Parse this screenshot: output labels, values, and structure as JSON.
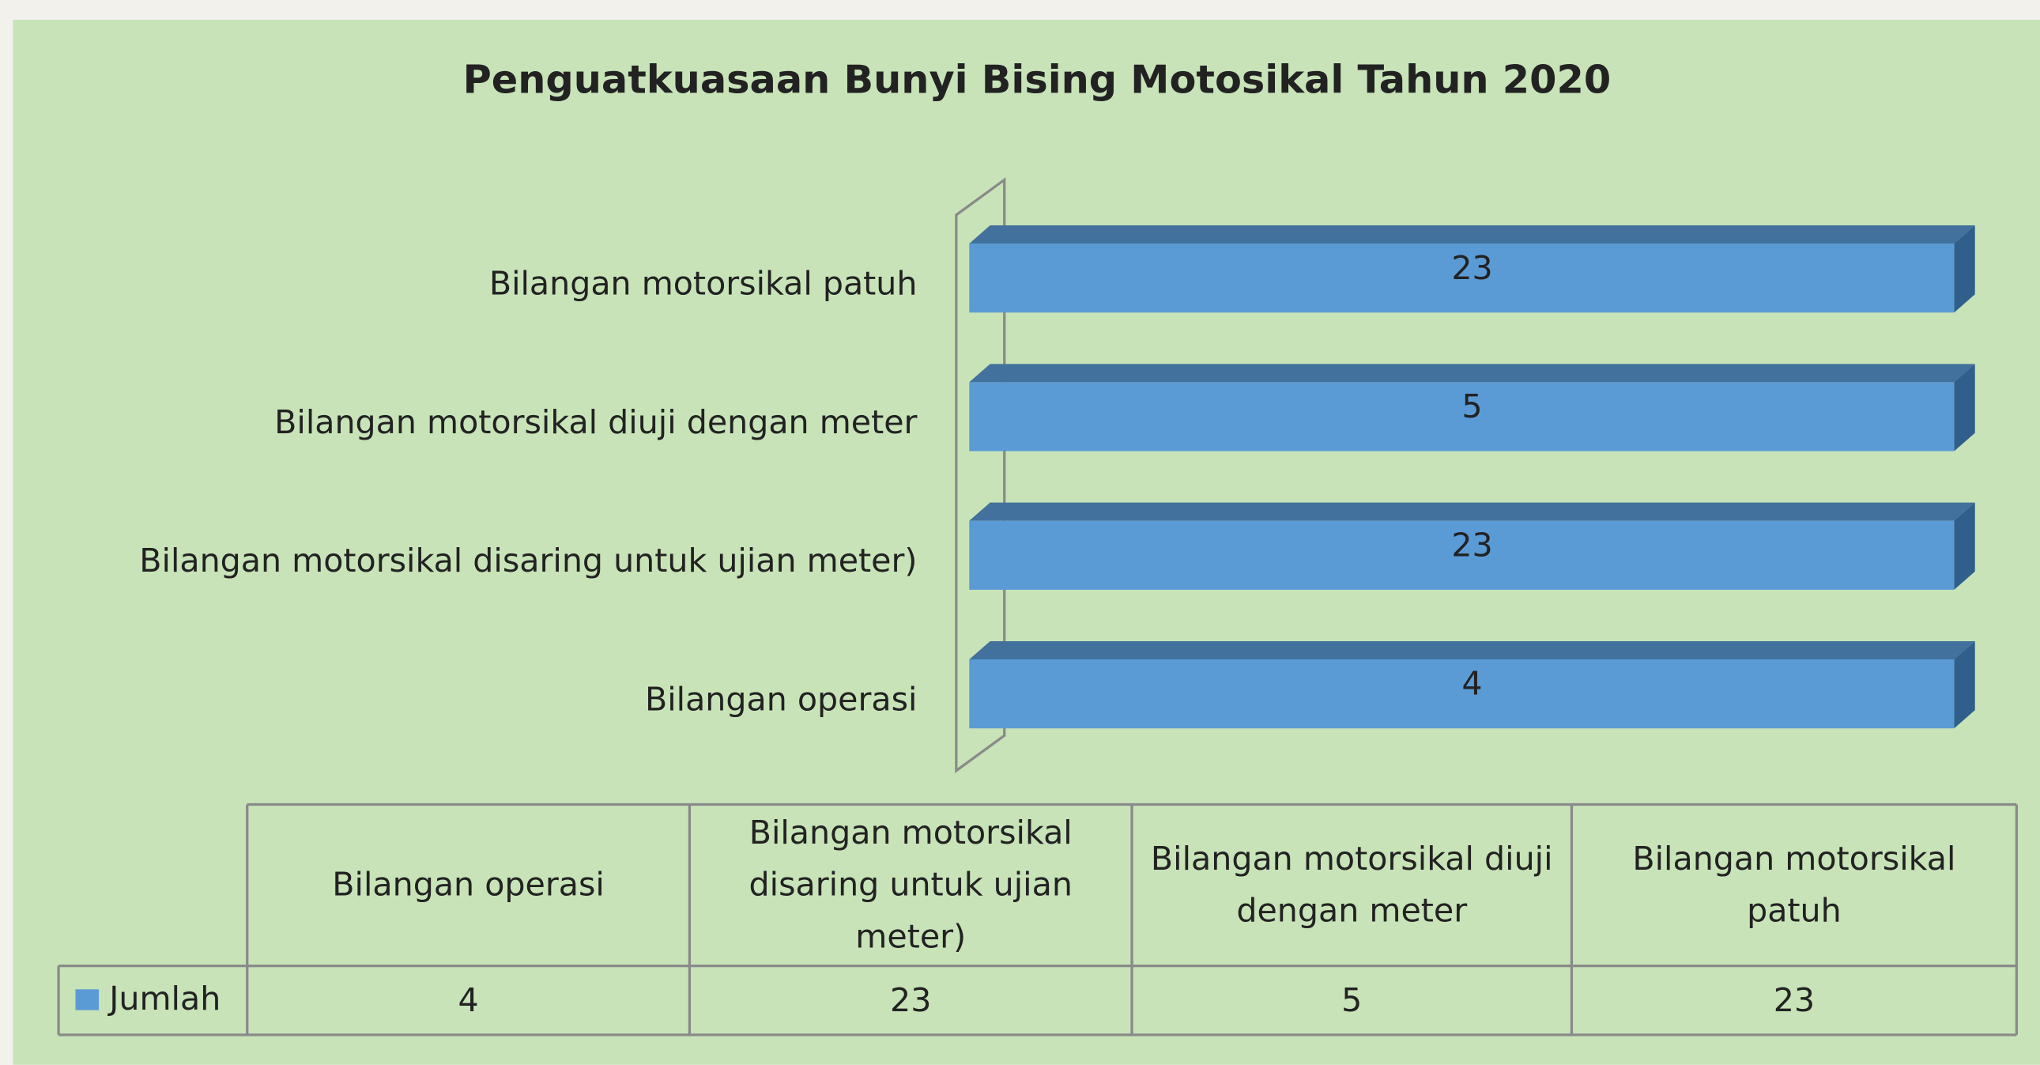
{
  "chart_data": {
    "type": "bar",
    "orientation": "horizontal",
    "stacking": "percent",
    "title": "Penguatkuasaan Bunyi Bising Motosikal Tahun 2020",
    "categories": [
      "Bilangan operasi",
      "Bilangan motorsikal disaring untuk ujian meter)",
      "Bilangan motorsikal diuji dengan meter",
      "Bilangan motorsikal patuh"
    ],
    "series": [
      {
        "name": "Jumlah",
        "color": "#5b9bd5",
        "values": [
          4,
          23,
          5,
          23
        ]
      }
    ],
    "data_table": true
  }
}
